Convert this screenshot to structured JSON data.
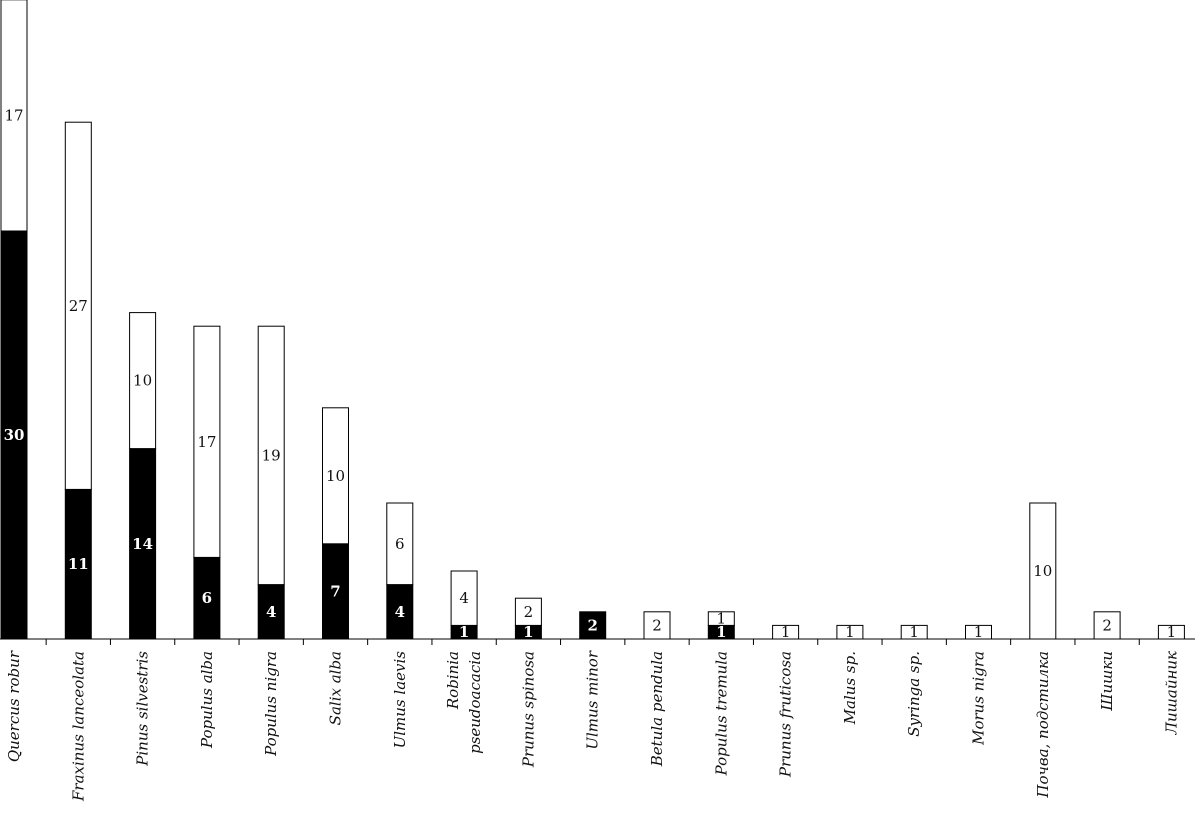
{
  "chart_data": {
    "type": "bar",
    "stacked": true,
    "categories": [
      "Quercus robur",
      "Fraxinus lanceolata",
      "Pinus silvestris",
      "Populus alba",
      "Populus nigra",
      "Salix alba",
      "Ulmus laevis",
      "Robinia pseudoacacia",
      "Prunus spinosa",
      "Ulmus minor",
      "Betula pendula",
      "Populus tremula",
      "Prunus fruticosa",
      "Malus sp.",
      "Syringa sp.",
      "Morus nigra",
      "Почва, подстилка",
      "Шишки",
      "Лишайник"
    ],
    "series": [
      {
        "color": "#000000",
        "values": [
          30,
          11,
          14,
          6,
          4,
          7,
          4,
          1,
          1,
          2,
          0,
          1,
          0,
          0,
          0,
          0,
          0,
          0,
          0
        ]
      },
      {
        "color": "#ffffff",
        "values": [
          17,
          27,
          10,
          17,
          19,
          10,
          6,
          4,
          2,
          0,
          2,
          1,
          1,
          1,
          1,
          1,
          10,
          2,
          1
        ]
      }
    ],
    "ylim": [
      0,
      47
    ],
    "grid": false,
    "legend": "none"
  }
}
